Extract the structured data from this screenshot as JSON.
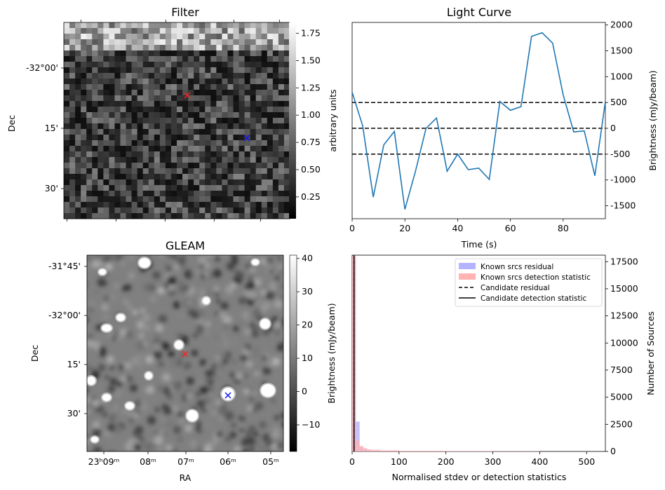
{
  "chart_data": [
    {
      "type": "heatmap",
      "title": "Filter",
      "ylabel": "Dec",
      "yticks": [
        "-32°00'",
        "15'",
        "30'"
      ],
      "colorbar": {
        "label": "arbitrary units",
        "range": [
          0.05,
          1.85
        ],
        "ticks": [
          "0.25",
          "0.50",
          "0.75",
          "1.00",
          "1.25",
          "1.50",
          "1.75"
        ]
      },
      "markers": [
        {
          "name": "candidate",
          "symbol": "x",
          "color": "#ff2020"
        },
        {
          "name": "known-source",
          "symbol": "x",
          "color": "#1010ff"
        }
      ]
    },
    {
      "type": "line",
      "title": "Light Curve",
      "xlabel": "Time (s)",
      "ylabel": "Brightness (mJy/beam)",
      "xlim": [
        0,
        96
      ],
      "ylim": [
        -1750,
        2050
      ],
      "xticks": [
        "0",
        "20",
        "40",
        "60",
        "80"
      ],
      "yticks": [
        "2000",
        "1500",
        "1000",
        "500",
        "0",
        "-500",
        "-1000",
        "-1500"
      ],
      "series": [
        {
          "name": "light curve",
          "x": [
            0,
            4,
            8,
            12,
            16,
            20,
            24,
            28,
            32,
            36,
            40,
            44,
            48,
            52,
            56,
            60,
            64,
            68,
            72,
            76,
            80,
            84,
            88,
            92,
            96
          ],
          "y": [
            700,
            50,
            -1330,
            -320,
            -60,
            -1570,
            -830,
            0,
            200,
            -830,
            -500,
            -800,
            -770,
            -990,
            520,
            350,
            420,
            1780,
            1850,
            1650,
            650,
            -70,
            -50,
            -920,
            520
          ],
          "color": "#1f77b4"
        }
      ],
      "hlines": [
        {
          "y": 500,
          "style": "dashed"
        },
        {
          "y": 0,
          "style": "dashed"
        },
        {
          "y": -500,
          "style": "dashed"
        }
      ]
    },
    {
      "type": "heatmap",
      "title": "GLEAM",
      "xlabel": "RA",
      "ylabel": "Dec",
      "xticks": [
        "23ʰ09ᵐ",
        "08ᵐ",
        "07ᵐ",
        "06ᵐ",
        "05ᵐ"
      ],
      "yticks": [
        "-31°45'",
        "-32°00'",
        "15'",
        "30'"
      ],
      "colorbar": {
        "label": "Brightness (mJy/beam)",
        "range": [
          -18,
          41
        ],
        "ticks": [
          "40",
          "30",
          "20",
          "10",
          "0",
          "−10"
        ]
      },
      "markers": [
        {
          "name": "candidate",
          "symbol": "x",
          "color": "#ff2020"
        },
        {
          "name": "known-source",
          "symbol": "x",
          "color": "#1010ff"
        }
      ]
    },
    {
      "type": "bar",
      "title": "",
      "xlabel": "Normalised stdev or detection statistics",
      "ylabel": "Number of Sources",
      "xlim": [
        0,
        540
      ],
      "ylim": [
        0,
        18100
      ],
      "xticks": [
        "0",
        "100",
        "200",
        "300",
        "400",
        "500"
      ],
      "yticks": [
        "0",
        "2500",
        "5000",
        "7500",
        "10000",
        "12500",
        "15000",
        "17500"
      ],
      "legend": [
        {
          "label": "Known srcs residual",
          "kind": "patch",
          "color": "#b3b3ff"
        },
        {
          "label": "Known srcs detection statistic",
          "kind": "patch",
          "color": "#ffb3b3"
        },
        {
          "label": "Candidate residual",
          "kind": "dashed",
          "color": "#000000"
        },
        {
          "label": "Candidate detection statistic",
          "kind": "solid",
          "color": "#000000"
        }
      ],
      "series": [
        {
          "name": "Known srcs residual",
          "bins": [
            0,
            8,
            16,
            24,
            32,
            40,
            60,
            100,
            200,
            300
          ],
          "values": [
            18000,
            2750,
            400,
            200,
            120,
            80,
            50,
            30,
            20,
            10
          ]
        },
        {
          "name": "Known srcs detection statistic",
          "bins": [
            0,
            8,
            16,
            24,
            32,
            40,
            60,
            100,
            200,
            300
          ],
          "values": [
            18000,
            1000,
            500,
            300,
            200,
            150,
            100,
            60,
            40,
            20
          ]
        }
      ],
      "vlines": [
        {
          "name": "Candidate residual",
          "x": 4,
          "style": "dashed"
        },
        {
          "name": "Candidate detection statistic",
          "x": 4,
          "style": "solid"
        }
      ]
    }
  ]
}
